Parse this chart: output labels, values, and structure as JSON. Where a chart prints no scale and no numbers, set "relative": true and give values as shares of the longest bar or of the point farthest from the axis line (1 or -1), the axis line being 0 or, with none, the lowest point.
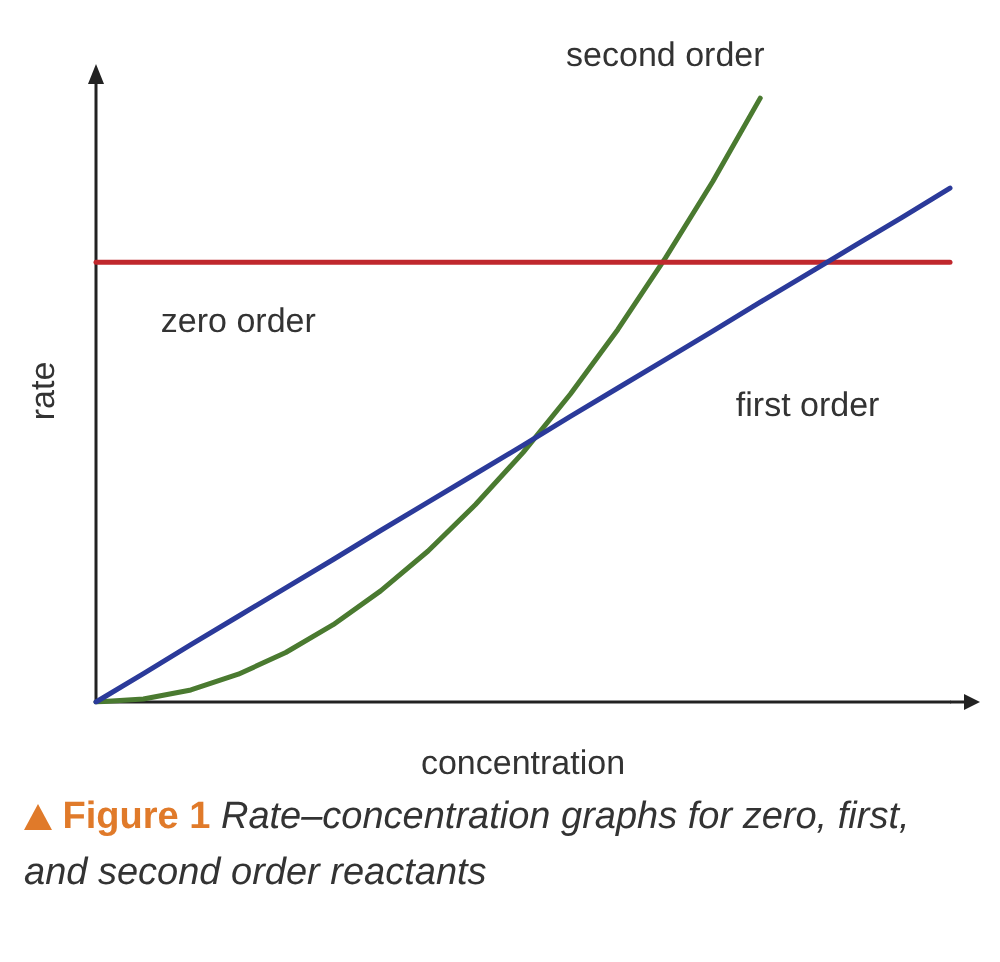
{
  "chart_data": {
    "type": "line",
    "title": "Figure 1",
    "subtitle": "Rate–concentration graphs for zero, first, and second order reactants",
    "xlabel": "concentration",
    "ylabel": "rate",
    "relative": true,
    "legend": false,
    "grid": false,
    "marker": "none",
    "line_style": "solid",
    "categories": [
      null,
      null,
      null,
      null,
      null,
      null,
      null,
      null,
      null,
      null,
      null,
      null,
      null,
      null,
      null,
      null,
      null,
      null,
      null
    ],
    "series": [
      {
        "name": "second order",
        "color": "#4a7a30",
        "values": [
          0,
          0.005,
          0.02,
          0.046,
          0.082,
          0.128,
          0.184,
          0.25,
          0.327,
          0.413,
          0.51,
          0.617,
          0.735,
          0.862,
          1,
          null,
          null,
          null,
          null
        ]
      },
      {
        "name": "zero order",
        "color": "#c0282d",
        "values": [
          0.728,
          0.728,
          0.728,
          0.728,
          0.728,
          0.728,
          0.728,
          0.728,
          0.728,
          0.728,
          0.728,
          0.728,
          0.728,
          0.728,
          0.728,
          0.728,
          0.728,
          0.728,
          0.728
        ]
      },
      {
        "name": "first order",
        "color": "#2b3a9a",
        "values": [
          0,
          0.047,
          0.095,
          0.142,
          0.189,
          0.236,
          0.284,
          0.331,
          0.378,
          0.425,
          0.473,
          0.52,
          0.567,
          0.614,
          0.662,
          0.709,
          0.756,
          0.803,
          0.851
        ]
      }
    ]
  }
}
